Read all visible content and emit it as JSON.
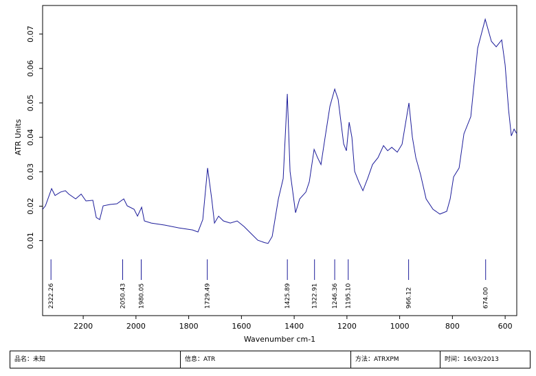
{
  "chart_data": {
    "type": "line",
    "x_label": "Wavenumber cm-1",
    "y_label": "ATR Units",
    "xlim": [
      2354,
      556
    ],
    "ylim": [
      -0.0118,
      0.0783
    ],
    "xticks": [
      2200,
      2000,
      1800,
      1600,
      1400,
      1200,
      1000,
      800,
      600
    ],
    "yticks": [
      0.01,
      0.02,
      0.03,
      0.04,
      0.05,
      0.06,
      0.07
    ],
    "x": [
      2353.7,
      2343.3,
      2319.9,
      2306.8,
      2286.0,
      2267.8,
      2254.7,
      2228.7,
      2207.8,
      2189.6,
      2163.5,
      2150.5,
      2137.5,
      2124.4,
      2098.4,
      2072.3,
      2046.3,
      2033.2,
      2007.2,
      1994.1,
      1978.5,
      1968.1,
      1942.0,
      1889.9,
      1837.8,
      1785.7,
      1764.8,
      1746.6,
      1728.3,
      1712.7,
      1702.3,
      1686.6,
      1668.4,
      1642.3,
      1616.3,
      1590.2,
      1564.2,
      1538.1,
      1512.0,
      1499.0,
      1483.4,
      1459.9,
      1441.7,
      1426.1,
      1415.6,
      1394.8,
      1379.1,
      1355.7,
      1342.6,
      1324.4,
      1311.4,
      1298.3,
      1282.7,
      1264.5,
      1246.2,
      1233.2,
      1212.3,
      1201.9,
      1191.5,
      1181.1,
      1170.7,
      1155.0,
      1139.4,
      1121.2,
      1102.9,
      1082.1,
      1061.2,
      1045.6,
      1030.0,
      1009.1,
      990.9,
      964.8,
      951.8,
      938.8,
      920.5,
      899.7,
      873.6,
      847.5,
      821.5,
      808.4,
      795.4,
      774.5,
      756.3,
      730.2,
      704.2,
      675.5,
      652.1,
      633.8,
      613.0,
      600.0,
      587.0,
      576.6,
      566.2,
      555.7
    ],
    "series": [
      {
        "color": "#1a1a99",
        "values": [
          0.0191,
          0.0201,
          0.0251,
          0.0231,
          0.0241,
          0.0245,
          0.0235,
          0.0221,
          0.0235,
          0.0215,
          0.0217,
          0.0167,
          0.0161,
          0.0201,
          0.0205,
          0.0207,
          0.0221,
          0.0201,
          0.0191,
          0.0171,
          0.0197,
          0.0157,
          0.0151,
          0.0145,
          0.0137,
          0.0131,
          0.0125,
          0.0161,
          0.0311,
          0.0221,
          0.0151,
          0.0171,
          0.0157,
          0.0151,
          0.0157,
          0.0141,
          0.0121,
          0.0101,
          0.0094,
          0.0092,
          0.0112,
          0.0221,
          0.028,
          0.0526,
          0.0301,
          0.0181,
          0.0221,
          0.0241,
          0.0271,
          0.0365,
          0.0341,
          0.0321,
          0.04,
          0.049,
          0.054,
          0.051,
          0.0381,
          0.0361,
          0.0444,
          0.04,
          0.0301,
          0.0271,
          0.0245,
          0.0281,
          0.0321,
          0.0341,
          0.0376,
          0.0361,
          0.0371,
          0.0357,
          0.038,
          0.05,
          0.04,
          0.0341,
          0.0291,
          0.0221,
          0.0191,
          0.0177,
          0.0185,
          0.0221,
          0.0285,
          0.0311,
          0.041,
          0.046,
          0.0659,
          0.0743,
          0.0679,
          0.0663,
          0.0683,
          0.061,
          0.048,
          0.0404,
          0.0424,
          0.041
        ]
      }
    ],
    "peaks": [
      {
        "value": 2322.26,
        "label": "2322.26"
      },
      {
        "value": 2050.43,
        "label": "2050.43"
      },
      {
        "value": 1980.05,
        "label": "1980.05"
      },
      {
        "value": 1729.49,
        "label": "1729.49"
      },
      {
        "value": 1425.89,
        "label": "1425.89"
      },
      {
        "value": 1322.91,
        "label": "1322.91"
      },
      {
        "value": 1246.36,
        "label": "1246.36"
      },
      {
        "value": 1195.1,
        "label": "1195.10"
      },
      {
        "value": 966.12,
        "label": "966.12"
      },
      {
        "value": 674,
        "label": "674.00"
      }
    ]
  },
  "footer": {
    "cells": [
      "品名：未知",
      "信息：ATR",
      "方法：ATRXPM",
      "时间：16/03/2013"
    ]
  }
}
